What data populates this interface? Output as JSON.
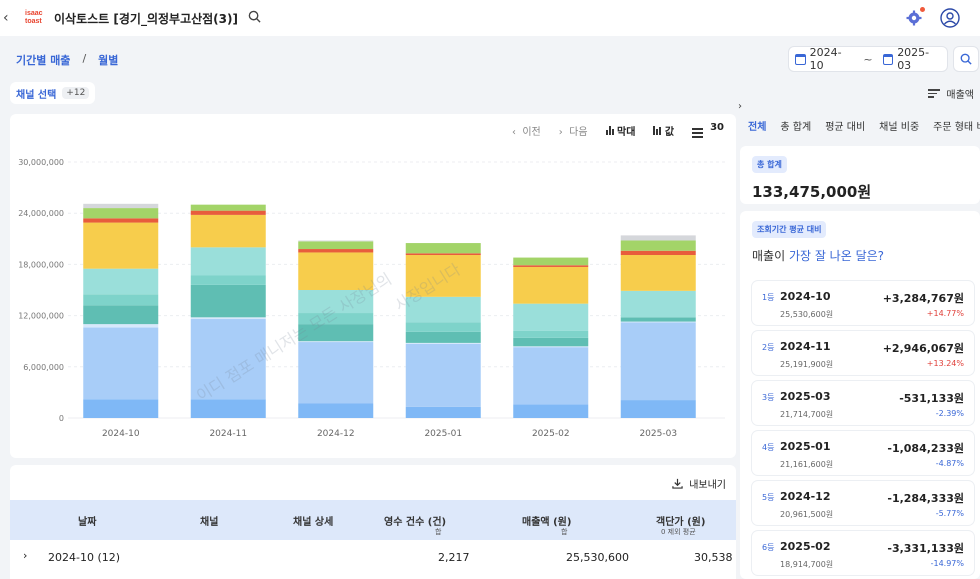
{
  "header": {
    "logo_line1": "isaac",
    "logo_line2": "toast",
    "store_name": "이삭토스트 [경기_의정부고산점(3)]"
  },
  "breadcrumb": {
    "parent": "기간별 매출",
    "separator": "/",
    "current": "월별"
  },
  "date_range": {
    "start": "2024-10",
    "separator": "~",
    "end": "2025-03"
  },
  "channel_filter": {
    "label": "채널 선택",
    "count": "+12"
  },
  "sort": {
    "label": "매출액"
  },
  "chart_toolbar": {
    "prev": "이전",
    "next": "다음",
    "bar_label": "막대",
    "value_label": "값",
    "page_size": "30"
  },
  "watermark": {
    "line1": "이디 점포 매니저는 모든 사장님의",
    "line2": "사장입니다"
  },
  "chart_data": {
    "type": "bar",
    "stacked": true,
    "categories": [
      "2024-10",
      "2024-11",
      "2024-12",
      "2025-01",
      "2025-02",
      "2025-03"
    ],
    "yticks": [
      "0",
      "6,000,000",
      "12,000,000",
      "18,000,000",
      "24,000,000",
      "30,000,000"
    ],
    "ylim": [
      0,
      30000000
    ],
    "grid": true,
    "series": [
      {
        "color": "#7fb8f6",
        "values": [
          2200000,
          2200000,
          1700000,
          1300000,
          1600000,
          2100000
        ]
      },
      {
        "color": "#a8cdf8",
        "values": [
          8400000,
          9400000,
          7200000,
          7400000,
          6700000,
          9100000
        ]
      },
      {
        "color": "#d7e8fb",
        "values": [
          400000,
          200000,
          100000,
          100000,
          100000,
          100000
        ]
      },
      {
        "color": "#5fbeb3",
        "values": [
          2200000,
          3800000,
          2000000,
          1300000,
          1000000,
          500000
        ]
      },
      {
        "color": "#7ed3ca",
        "values": [
          1300000,
          1100000,
          1300000,
          1100000,
          800000,
          0
        ]
      },
      {
        "color": "#9adfda",
        "values": [
          3000000,
          3300000,
          2700000,
          3000000,
          3200000,
          3100000
        ]
      },
      {
        "color": "#f7cd4c",
        "values": [
          5400000,
          3800000,
          4400000,
          4900000,
          4300000,
          4200000
        ]
      },
      {
        "color": "#e85c3c",
        "values": [
          500000,
          500000,
          400000,
          200000,
          200000,
          500000
        ]
      },
      {
        "color": "#a3d468",
        "values": [
          1200000,
          700000,
          900000,
          1200000,
          900000,
          1200000
        ]
      },
      {
        "color": "#d5d7db",
        "values": [
          500000,
          0,
          100000,
          0,
          0,
          600000
        ]
      }
    ]
  },
  "table": {
    "export_label": "내보내기",
    "headers": [
      "날짜",
      "채널",
      "채널 상세",
      "영수 건수 (건)",
      "매출액 (원)",
      "객단가 (원)"
    ],
    "subheaders": {
      "receipts": "합",
      "sales": "합",
      "unit": "0 제외 평균"
    },
    "rows": [
      {
        "date": "2024-10 (12)",
        "receipts": "2,217",
        "sales": "25,530,600",
        "unit": "30,538"
      }
    ]
  },
  "right_panel": {
    "tabs": [
      "전체",
      "총 합계",
      "평균 대비",
      "채널 비중",
      "주문 형태 비중"
    ],
    "total": {
      "badge": "총 합계",
      "value": "133,475,000원"
    },
    "compare": {
      "badge": "조회기간 평균 대비",
      "title_prefix": "매출이 ",
      "title_highlight": "가장 잘 나온 달은?",
      "items": [
        {
          "rank": "1등",
          "date": "2024-10",
          "sales": "25,530,600원",
          "diff": "+3,284,767원",
          "pct": "+14.77%",
          "dir": "pos"
        },
        {
          "rank": "2등",
          "date": "2024-11",
          "sales": "25,191,900원",
          "diff": "+2,946,067원",
          "pct": "+13.24%",
          "dir": "pos"
        },
        {
          "rank": "3등",
          "date": "2025-03",
          "sales": "21,714,700원",
          "diff": "-531,133원",
          "pct": "-2.39%",
          "dir": "neg"
        },
        {
          "rank": "4등",
          "date": "2025-01",
          "sales": "21,161,600원",
          "diff": "-1,084,233원",
          "pct": "-4.87%",
          "dir": "neg"
        },
        {
          "rank": "5등",
          "date": "2024-12",
          "sales": "20,961,500원",
          "diff": "-1,284,333원",
          "pct": "-5.77%",
          "dir": "neg"
        },
        {
          "rank": "6등",
          "date": "2025-02",
          "sales": "18,914,700원",
          "diff": "-3,331,133원",
          "pct": "-14.97%",
          "dir": "neg"
        }
      ]
    }
  }
}
